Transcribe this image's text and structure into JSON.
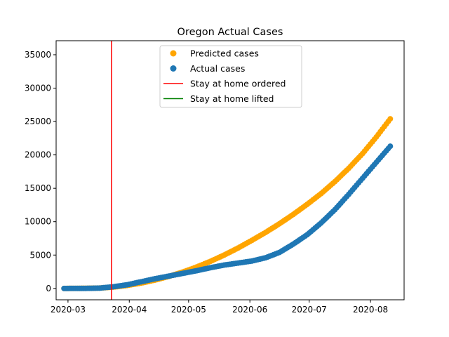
{
  "chart_data": {
    "type": "scatter",
    "title": "Oregon Actual Cases",
    "xlabel": "",
    "ylabel": "",
    "x_type": "date",
    "xlim": [
      "2020-02-24",
      "2020-08-18"
    ],
    "ylim": [
      -1700,
      37100
    ],
    "x_ticks": [
      "2020-03-01",
      "2020-04-01",
      "2020-05-01",
      "2020-06-01",
      "2020-07-01",
      "2020-08-01"
    ],
    "x_tick_labels": [
      "2020-03",
      "2020-04",
      "2020-05",
      "2020-06",
      "2020-07",
      "2020-08"
    ],
    "y_ticks": [
      0,
      5000,
      10000,
      15000,
      20000,
      25000,
      30000,
      35000
    ],
    "y_tick_labels": [
      "0",
      "5000",
      "10000",
      "15000",
      "20000",
      "25000",
      "30000",
      "35000"
    ],
    "grid": false,
    "legend_position": "top-center",
    "series": [
      {
        "name": "Predicted cases",
        "kind": "scatter",
        "color": "#ffa500",
        "points": [
          [
            "2020-02-28",
            0
          ],
          [
            "2020-03-10",
            20
          ],
          [
            "2020-03-17",
            60
          ],
          [
            "2020-03-24",
            200
          ],
          [
            "2020-03-31",
            450
          ],
          [
            "2020-04-07",
            800
          ],
          [
            "2020-04-14",
            1250
          ],
          [
            "2020-04-21",
            1800
          ],
          [
            "2020-04-28",
            2450
          ],
          [
            "2020-05-05",
            3200
          ],
          [
            "2020-05-12",
            4050
          ],
          [
            "2020-05-19",
            5000
          ],
          [
            "2020-05-26",
            6050
          ],
          [
            "2020-06-02",
            7200
          ],
          [
            "2020-06-09",
            8400
          ],
          [
            "2020-06-16",
            9700
          ],
          [
            "2020-06-23",
            11100
          ],
          [
            "2020-06-30",
            12600
          ],
          [
            "2020-07-07",
            14200
          ],
          [
            "2020-07-14",
            16000
          ],
          [
            "2020-07-21",
            18000
          ],
          [
            "2020-07-28",
            20200
          ],
          [
            "2020-08-04",
            22700
          ],
          [
            "2020-08-11",
            25400
          ]
        ]
      },
      {
        "name": "Actual cases",
        "kind": "scatter",
        "color": "#1f77b4",
        "points": [
          [
            "2020-02-28",
            0
          ],
          [
            "2020-03-10",
            10
          ],
          [
            "2020-03-17",
            50
          ],
          [
            "2020-03-24",
            250
          ],
          [
            "2020-03-31",
            550
          ],
          [
            "2020-04-07",
            1000
          ],
          [
            "2020-04-14",
            1450
          ],
          [
            "2020-04-21",
            1850
          ],
          [
            "2020-04-28",
            2250
          ],
          [
            "2020-05-05",
            2650
          ],
          [
            "2020-05-12",
            3100
          ],
          [
            "2020-05-19",
            3500
          ],
          [
            "2020-05-26",
            3800
          ],
          [
            "2020-06-02",
            4100
          ],
          [
            "2020-06-09",
            4600
          ],
          [
            "2020-06-16",
            5400
          ],
          [
            "2020-06-23",
            6650
          ],
          [
            "2020-06-30",
            8050
          ],
          [
            "2020-07-07",
            9800
          ],
          [
            "2020-07-14",
            11800
          ],
          [
            "2020-07-21",
            14100
          ],
          [
            "2020-07-28",
            16500
          ],
          [
            "2020-08-04",
            18900
          ],
          [
            "2020-08-11",
            21300
          ]
        ]
      },
      {
        "name": "Stay at home ordered",
        "kind": "vline",
        "color": "#ff0000",
        "x": "2020-03-23"
      },
      {
        "name": "Stay at home lifted",
        "kind": "vline",
        "color": "#008000",
        "x": null
      }
    ]
  }
}
